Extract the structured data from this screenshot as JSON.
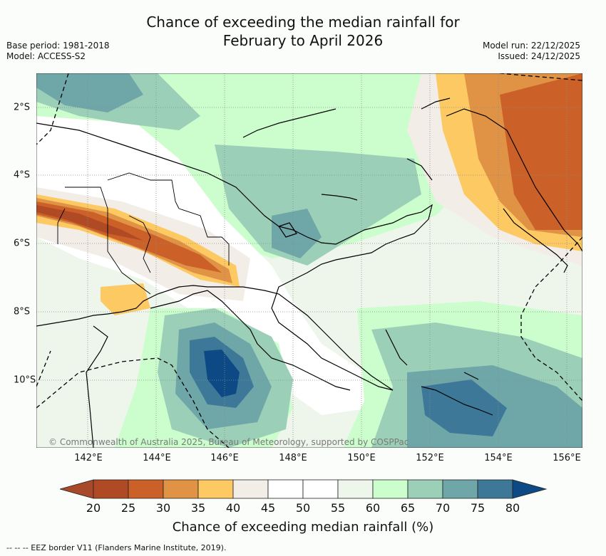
{
  "title": {
    "line1": "Chance of exceeding the median rainfall for",
    "line2": "February to April 2026"
  },
  "meta_left": {
    "base_period": "Base period: 1981-2018",
    "model": "Model: ACCESS-S2"
  },
  "meta_right": {
    "model_run": "Model run: 22/12/2025",
    "issued": "Issued: 24/12/2025"
  },
  "map": {
    "lon_labels": [
      "142°E",
      "144°E",
      "146°E",
      "148°E",
      "150°E",
      "152°E",
      "154°E",
      "156°E"
    ],
    "lat_labels": [
      "2°S",
      "4°S",
      "6°S",
      "8°S",
      "10°S"
    ],
    "copyright": "© Commonwealth of Australia 2025, Bureau of Meteorology, supported by COSPPac"
  },
  "colorbar": {
    "ticks": [
      "20",
      "25",
      "30",
      "35",
      "40",
      "45",
      "50",
      "55",
      "60",
      "65",
      "70",
      "75",
      "80"
    ],
    "colors": [
      "#a8492a",
      "#b04a24",
      "#cb6128",
      "#e09245",
      "#fdc962",
      "#f3ede8",
      "#ffffff",
      "#ffffff",
      "#eef6ec",
      "#ccfdcd",
      "#9ccfb8",
      "#6fa6a8",
      "#3e7898",
      "#0d4a85"
    ],
    "label": "Chance of exceeding median rainfall (%)"
  },
  "footer": "-- -- -- EEZ border V11 (Flanders Marine Institute, 2019)."
}
